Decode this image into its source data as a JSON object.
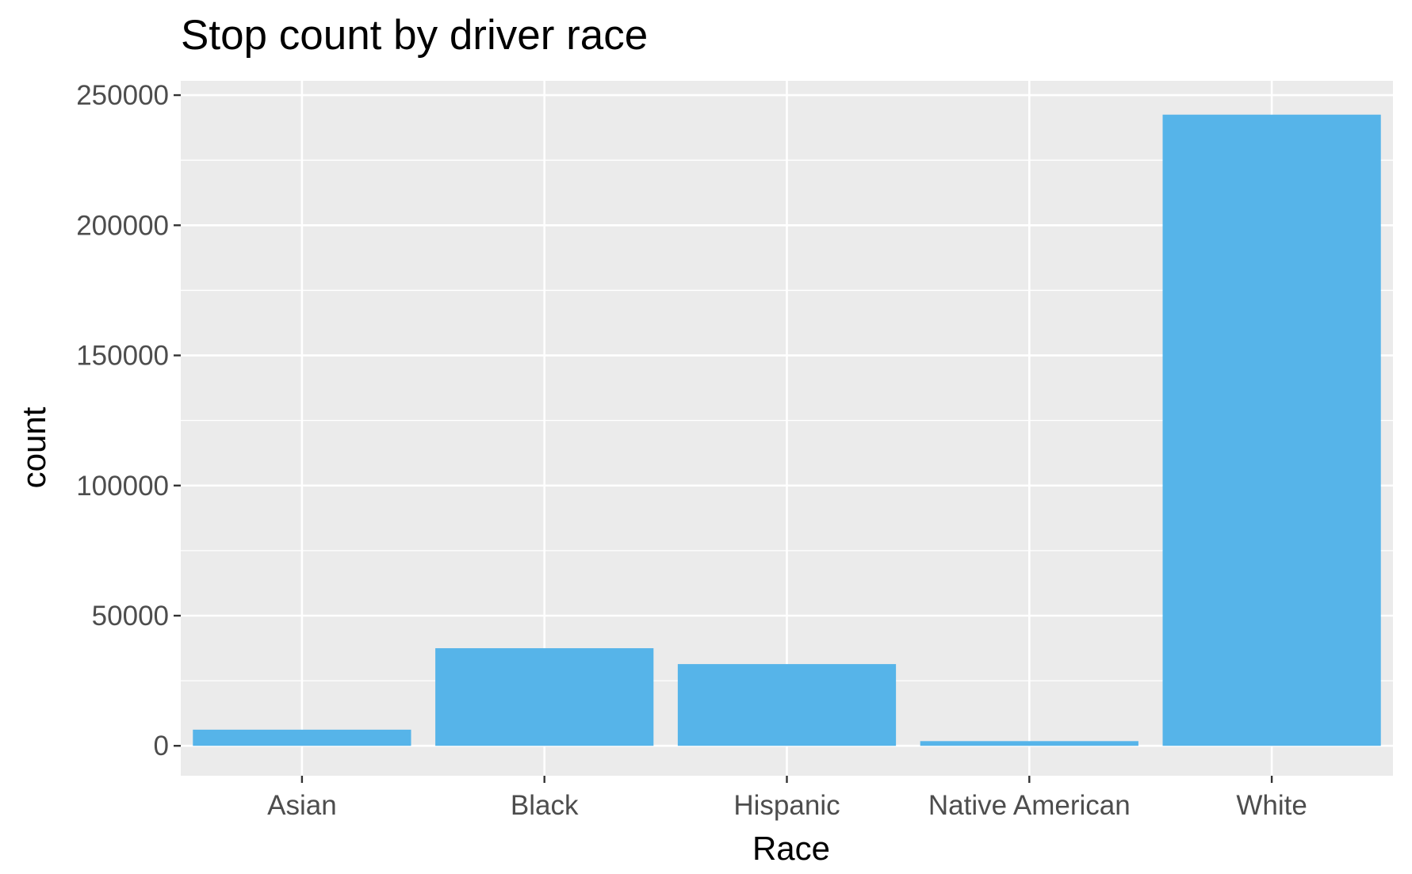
{
  "chart_data": {
    "type": "bar",
    "title": "Stop count by driver race",
    "xlabel": "Race",
    "ylabel": "count",
    "categories": [
      "Asian",
      "Black",
      "Hispanic",
      "Native American",
      "White"
    ],
    "values": [
      6200,
      37500,
      31400,
      1800,
      242500
    ],
    "ylim": [
      -11500,
      255500
    ],
    "yticks": [
      0,
      50000,
      100000,
      150000,
      200000,
      250000
    ],
    "ytick_labels": [
      "0",
      "50000",
      "100000",
      "150000",
      "200000",
      "250000"
    ],
    "grid": true,
    "legend": "none",
    "colors": {
      "bar": "#56B4E9",
      "panel_background": "#EBEBEB",
      "grid": "#FFFFFF",
      "tick": "#333333",
      "tick_label": "#4D4D4D"
    }
  }
}
